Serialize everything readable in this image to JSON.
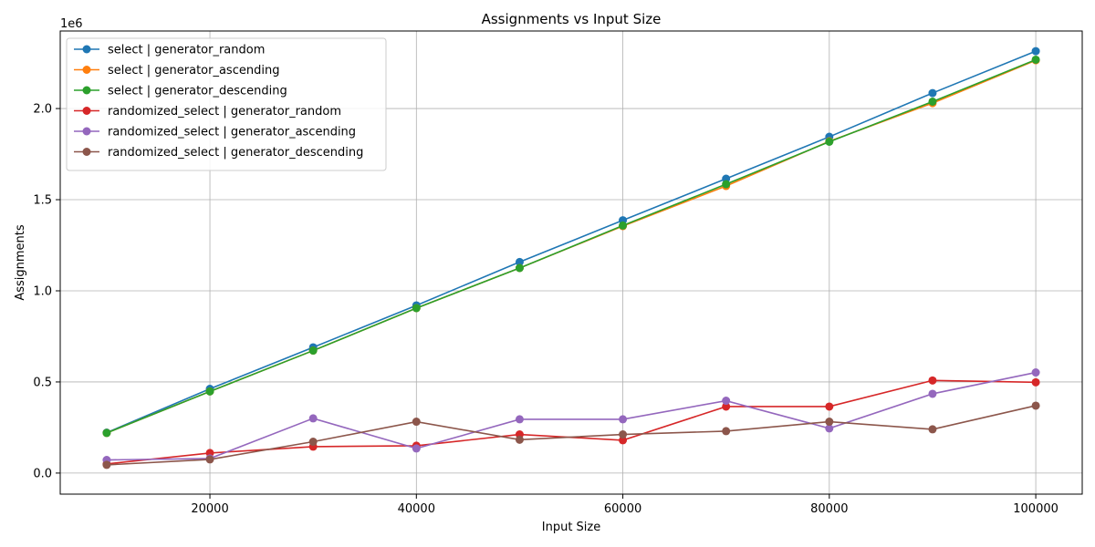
{
  "chart_data": {
    "type": "line",
    "title": "Assignments vs Input Size",
    "xlabel": "Input Size",
    "ylabel": "Assignments",
    "y_offset_label": "1e6",
    "x": [
      10000,
      20000,
      30000,
      40000,
      50000,
      60000,
      70000,
      80000,
      90000,
      100000
    ],
    "xlim": [
      5500,
      104500
    ],
    "ylim": [
      -0.1155,
      2.4255
    ],
    "y_unit_multiplier": 1000000,
    "x_ticks": [
      20000,
      40000,
      60000,
      80000,
      100000
    ],
    "x_tick_labels": [
      "20000",
      "40000",
      "60000",
      "80000",
      "100000"
    ],
    "y_ticks": [
      0.0,
      0.5,
      1.0,
      1.5,
      2.0
    ],
    "y_tick_labels": [
      "0.0",
      "0.5",
      "1.0",
      "1.5",
      "2.0"
    ],
    "grid": true,
    "legend_position": "top-left",
    "series": [
      {
        "name": "select | generator_random",
        "color": "#1f77b4",
        "values": [
          0.222,
          0.462,
          0.69,
          0.92,
          1.158,
          1.387,
          1.615,
          1.845,
          2.085,
          2.315
        ]
      },
      {
        "name": "select | generator_ascending",
        "color": "#ff7f0e",
        "values": [
          0.22,
          0.448,
          0.672,
          0.905,
          1.125,
          1.355,
          1.575,
          1.82,
          2.03,
          2.265
        ]
      },
      {
        "name": "select | generator_descending",
        "color": "#2ca02c",
        "values": [
          0.22,
          0.448,
          0.672,
          0.905,
          1.125,
          1.358,
          1.585,
          1.818,
          2.038,
          2.268
        ]
      },
      {
        "name": "randomized_select | generator_random",
        "color": "#d62728",
        "values": [
          0.05,
          0.11,
          0.145,
          0.15,
          0.212,
          0.18,
          0.365,
          0.365,
          0.508,
          0.498
        ]
      },
      {
        "name": "randomized_select | generator_ascending",
        "color": "#9467bd",
        "values": [
          0.072,
          0.08,
          0.3,
          0.135,
          0.295,
          0.295,
          0.397,
          0.245,
          0.435,
          0.552
        ]
      },
      {
        "name": "randomized_select | generator_descending",
        "color": "#8c564b",
        "values": [
          0.045,
          0.075,
          0.172,
          0.282,
          0.183,
          0.212,
          0.23,
          0.282,
          0.24,
          0.37
        ]
      }
    ]
  }
}
